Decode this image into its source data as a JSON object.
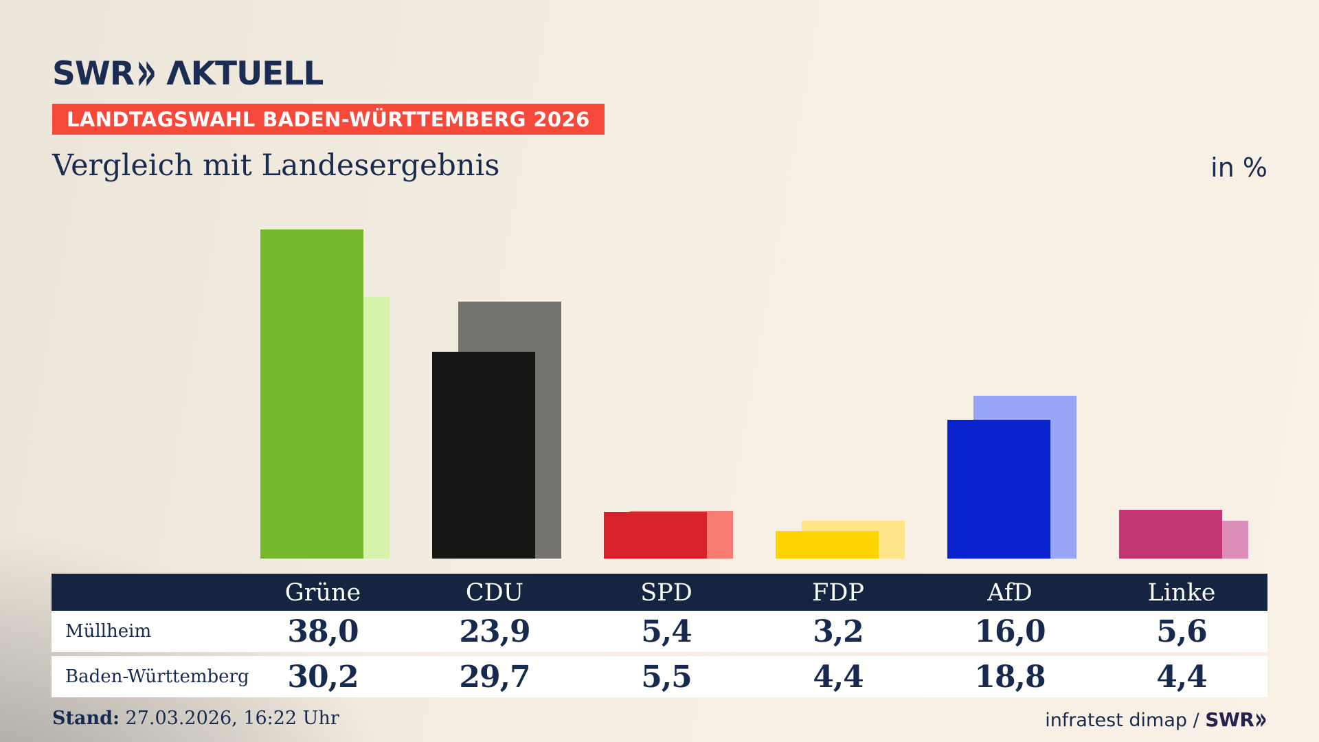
{
  "header": {
    "logo": {
      "swr": "SWR",
      "chevrons": "»",
      "aktuell": "ΛKTUELL"
    },
    "banner_label": "LANDTAGSWAHL BADEN-WÜRTTEMBERG 2026",
    "title": "Vergleich mit Landesergebnis",
    "unit_label": "in %"
  },
  "chart_data": {
    "type": "bar",
    "unit": "%",
    "title": "Vergleich mit Landesergebnis",
    "categories": [
      "Grüne",
      "CDU",
      "SPD",
      "FDP",
      "AfD",
      "Linke"
    ],
    "series": [
      {
        "name": "Müllheim",
        "role": "foreground",
        "values": [
          38.0,
          23.9,
          5.4,
          3.2,
          16.0,
          5.6
        ]
      },
      {
        "name": "Baden-Württemberg",
        "role": "background",
        "values": [
          30.2,
          29.7,
          5.5,
          4.4,
          18.8,
          4.4
        ]
      }
    ],
    "party_colors": {
      "main": [
        "#76b82b",
        "#161614",
        "#d6222a",
        "#ffd402",
        "#0b22cf",
        "#c23572"
      ],
      "land": [
        "#d5f3ab",
        "#757370",
        "#f87b72",
        "#ffe489",
        "#97a6f7",
        "#db8eb8"
      ]
    },
    "ylim": [
      0,
      40
    ],
    "grid": false,
    "axis_labels_hidden": true,
    "legend_position": "table-below-chart",
    "value_format": "decimal-comma-1"
  },
  "table": {
    "corner_label": "",
    "columns": [
      "Grüne",
      "CDU",
      "SPD",
      "FDP",
      "AfD",
      "Linke"
    ],
    "rows": [
      {
        "label": "Müllheim",
        "values": [
          "38,0",
          "23,9",
          "5,4",
          "3,2",
          "16,0",
          "5,6"
        ]
      },
      {
        "label": "Baden-Württemberg",
        "values": [
          "30,2",
          "29,7",
          "5,5",
          "4,4",
          "18,8",
          "4,4"
        ]
      }
    ]
  },
  "footer": {
    "stand_label": "Stand:",
    "stand_value": " 27.03.2026, 16:22 Uhr",
    "source_text": "infratest dimap / ",
    "source_logo_swr": "SWR",
    "source_logo_chevrons": "»"
  },
  "colors": {
    "banner_bg": "#f4493b",
    "banner_text": "#ffffff",
    "table_header_bg": "#152441",
    "row_bg": "#fffffe",
    "text_navy": "#16294e",
    "logo_navy": "#1b2d52",
    "background_beige": "#f5eee2",
    "background_grey": "#949290"
  }
}
